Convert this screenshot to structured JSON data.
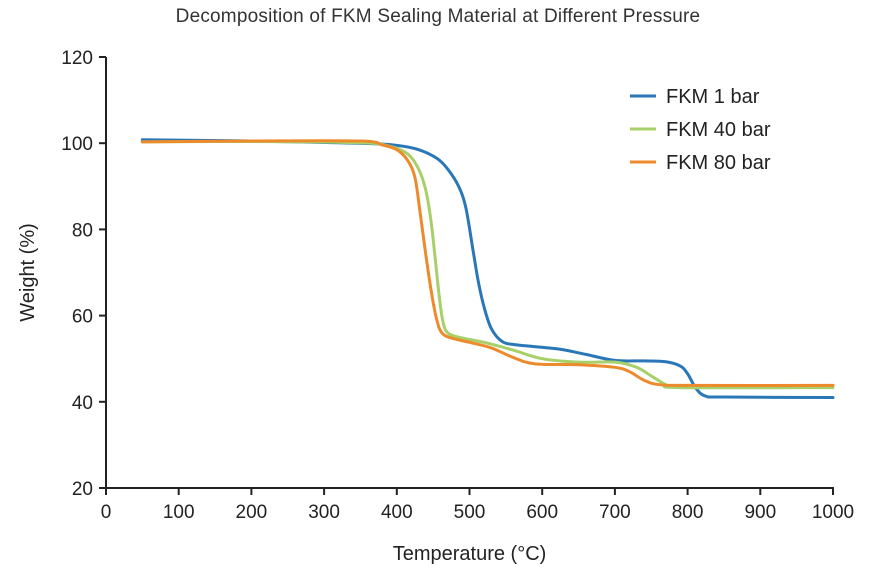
{
  "chart_data": {
    "type": "line",
    "title": "Decomposition of FKM Sealing Material at Different Pressure",
    "xlabel": "Temperature (°C)",
    "ylabel": "Weight (%)",
    "xlim": [
      0,
      1000
    ],
    "ylim": [
      20,
      120
    ],
    "xticks": [
      "0",
      "100",
      "200",
      "300",
      "400",
      "500",
      "600",
      "700",
      "800",
      "900",
      "1000"
    ],
    "yticks": [
      "20",
      "40",
      "60",
      "80",
      "100",
      "120"
    ],
    "grid": false,
    "legend_position": "top-right",
    "series": [
      {
        "name": "FKM 1 bar",
        "color": "#2a77b8",
        "points": [
          [
            50,
            100.8
          ],
          [
            200,
            100.5
          ],
          [
            350,
            100.0
          ],
          [
            400,
            99.5
          ],
          [
            430,
            98.5
          ],
          [
            455,
            96.5
          ],
          [
            470,
            94
          ],
          [
            485,
            90
          ],
          [
            495,
            85
          ],
          [
            505,
            75
          ],
          [
            512,
            68
          ],
          [
            520,
            62
          ],
          [
            530,
            57
          ],
          [
            545,
            54
          ],
          [
            565,
            53.2
          ],
          [
            620,
            52.3
          ],
          [
            660,
            51
          ],
          [
            700,
            49.6
          ],
          [
            740,
            49.5
          ],
          [
            770,
            49.3
          ],
          [
            790,
            48.3
          ],
          [
            800,
            46.5
          ],
          [
            812,
            43
          ],
          [
            825,
            41.3
          ],
          [
            850,
            41.1
          ],
          [
            1000,
            41.0
          ]
        ]
      },
      {
        "name": "FKM 40 bar",
        "color": "#a8d06a",
        "points": [
          [
            50,
            100.3
          ],
          [
            200,
            100.4
          ],
          [
            350,
            100.1
          ],
          [
            390,
            99.3
          ],
          [
            415,
            97.5
          ],
          [
            430,
            94
          ],
          [
            440,
            89
          ],
          [
            447,
            82
          ],
          [
            453,
            73
          ],
          [
            458,
            65
          ],
          [
            463,
            59
          ],
          [
            470,
            56
          ],
          [
            490,
            54.8
          ],
          [
            520,
            53.8
          ],
          [
            560,
            52
          ],
          [
            600,
            50
          ],
          [
            650,
            49.2
          ],
          [
            700,
            49.2
          ],
          [
            730,
            48
          ],
          [
            750,
            46
          ],
          [
            770,
            44
          ],
          [
            790,
            43.3
          ],
          [
            1000,
            43.3
          ]
        ]
      },
      {
        "name": "FKM 80 bar",
        "color": "#ec8a2c",
        "points": [
          [
            50,
            100.3
          ],
          [
            200,
            100.5
          ],
          [
            350,
            100.5
          ],
          [
            380,
            99.6
          ],
          [
            400,
            98.5
          ],
          [
            415,
            96
          ],
          [
            425,
            92
          ],
          [
            432,
            84
          ],
          [
            440,
            74
          ],
          [
            448,
            65
          ],
          [
            455,
            59
          ],
          [
            462,
            56
          ],
          [
            475,
            54.8
          ],
          [
            500,
            53.8
          ],
          [
            530,
            52.5
          ],
          [
            560,
            50.3
          ],
          [
            590,
            48.8
          ],
          [
            650,
            48.6
          ],
          [
            700,
            48
          ],
          [
            720,
            47
          ],
          [
            740,
            45
          ],
          [
            760,
            44
          ],
          [
            800,
            43.8
          ],
          [
            1000,
            43.8
          ]
        ]
      }
    ]
  }
}
